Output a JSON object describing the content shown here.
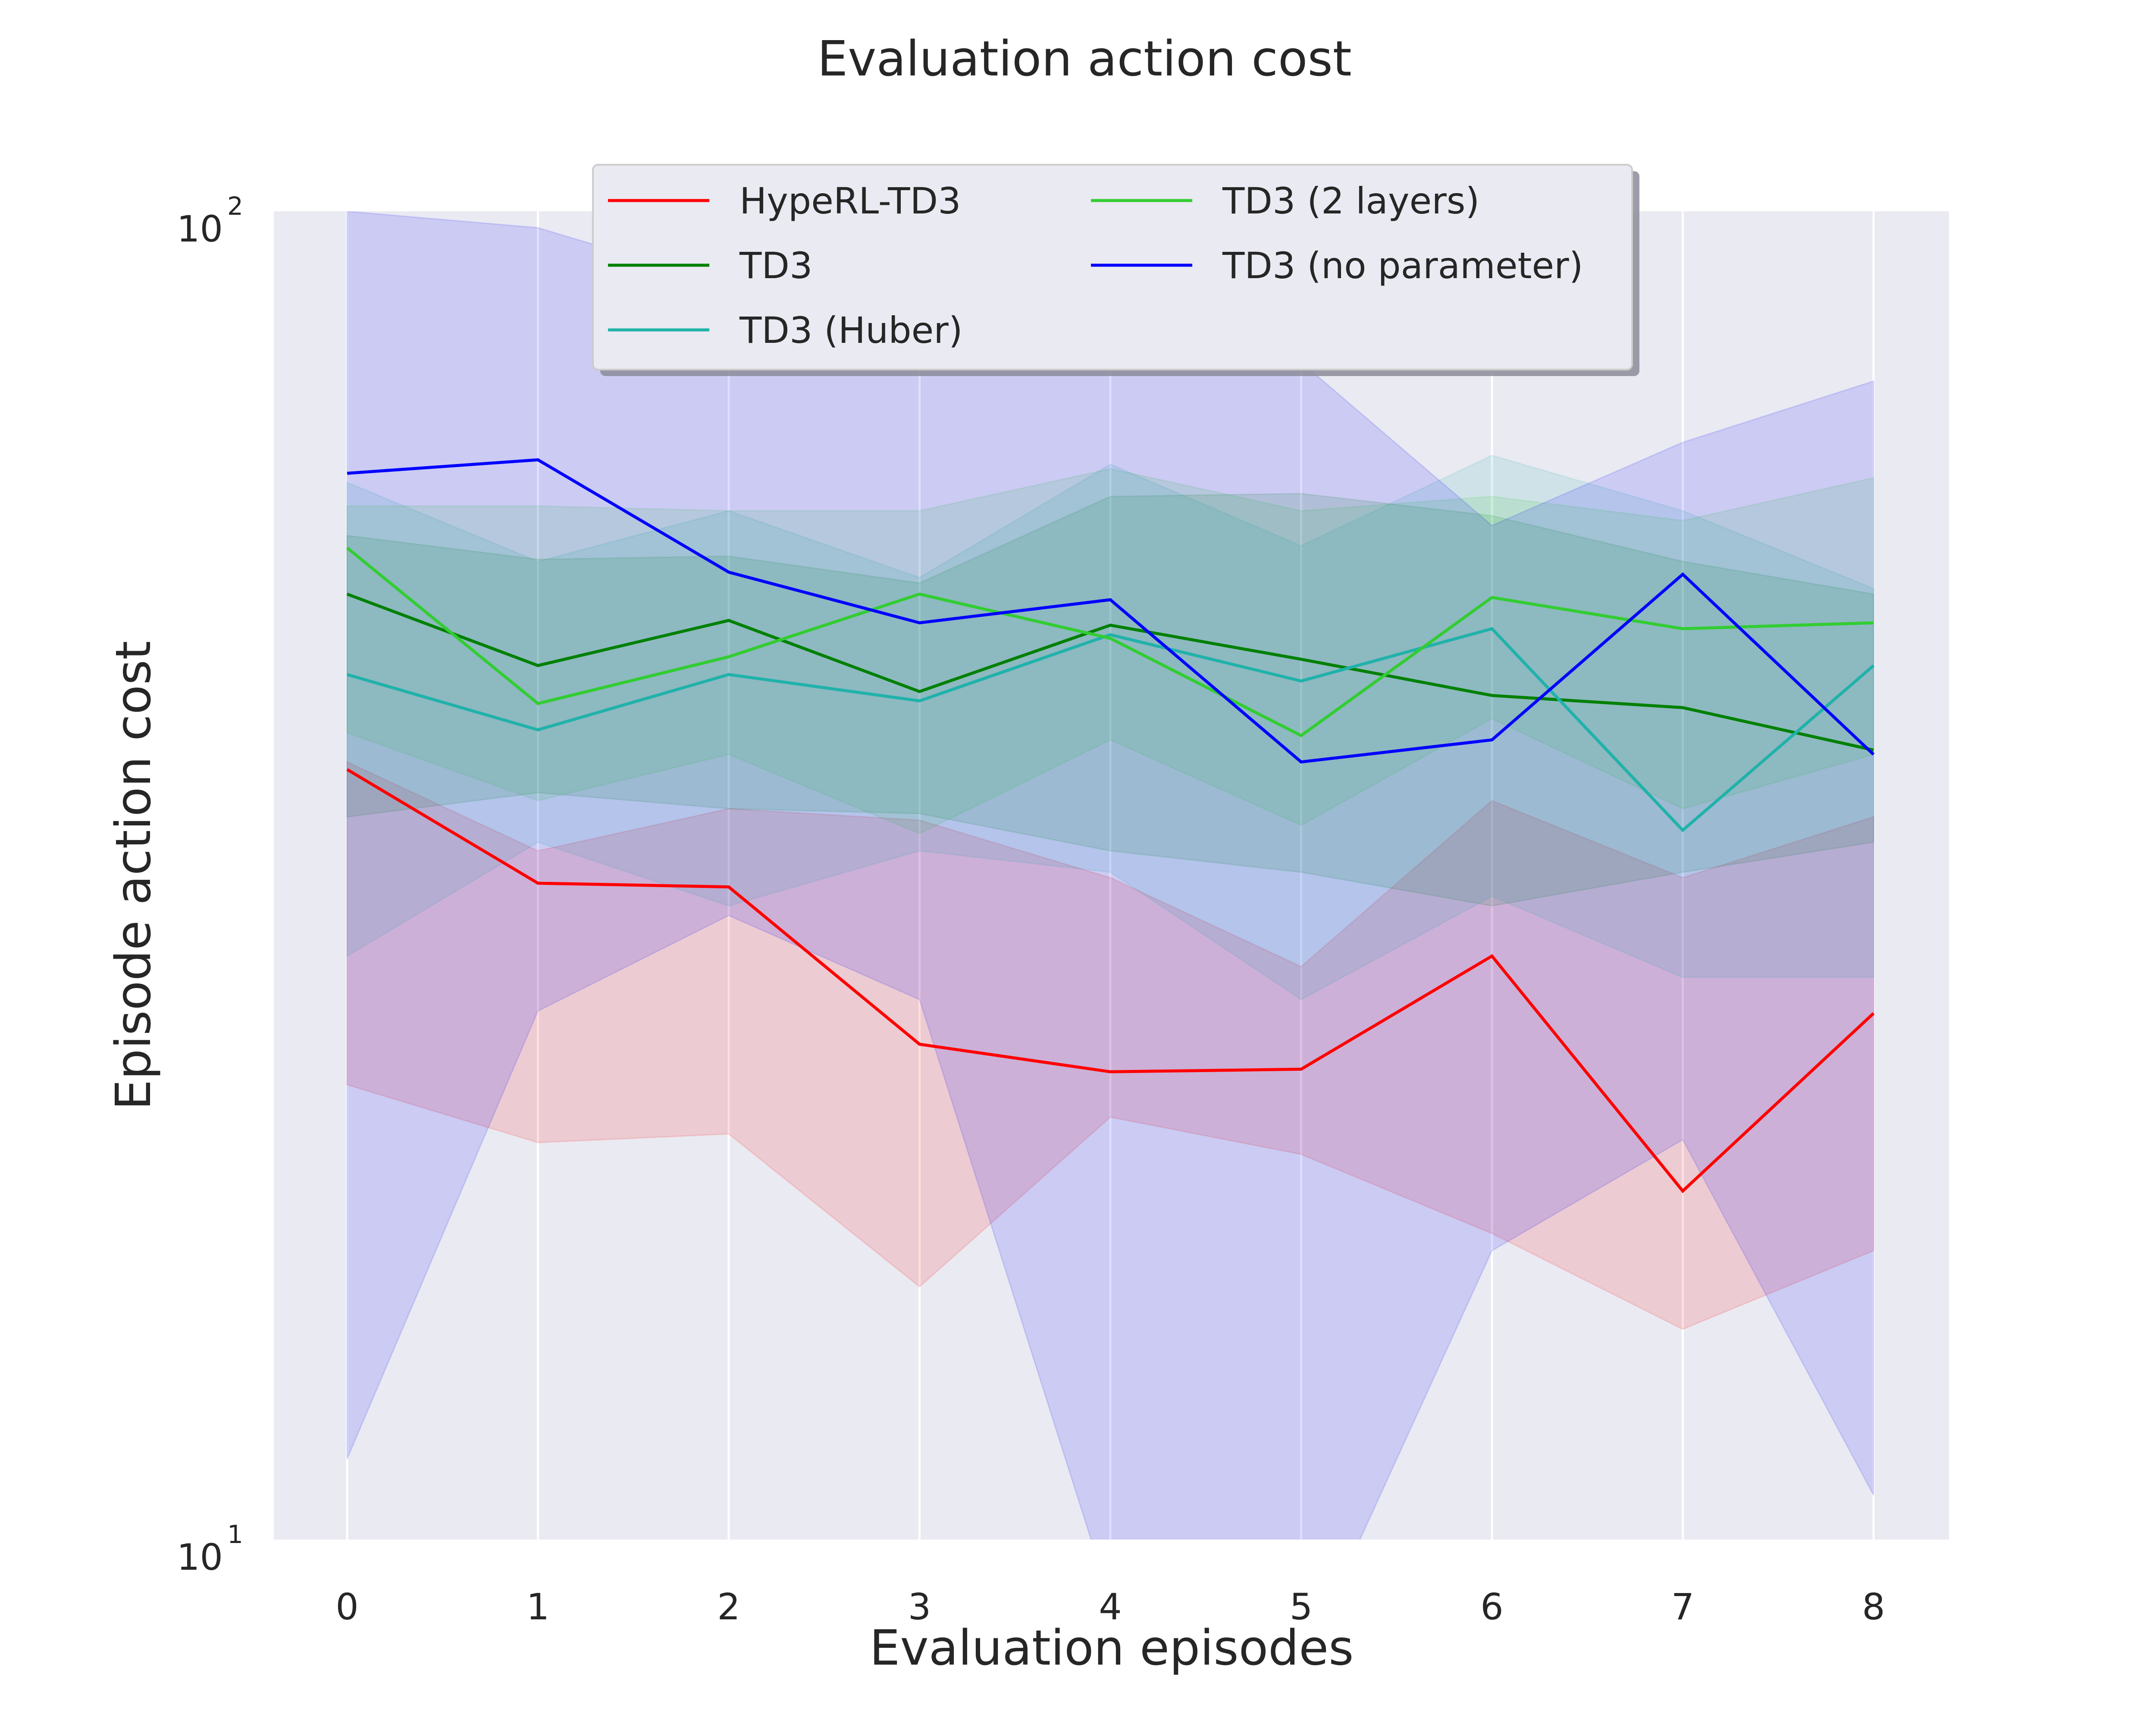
{
  "chart_data": {
    "type": "line",
    "title": "Evaluation action cost",
    "xlabel": "Evaluation episodes",
    "ylabel": "Episode action cost",
    "yscale": "log",
    "ylim": [
      10,
      100
    ],
    "x": [
      0,
      1,
      2,
      3,
      4,
      5,
      6,
      7,
      8
    ],
    "x_tick_labels": [
      "0",
      "1",
      "2",
      "3",
      "4",
      "5",
      "6",
      "7",
      "8"
    ],
    "y_ticks": [
      {
        "value": 10,
        "base": "10",
        "exp": "1"
      },
      {
        "value": 100,
        "base": "10",
        "exp": "2"
      }
    ],
    "grid": "x",
    "background": "#eaeaf2",
    "legend_location": "upper-center",
    "series": [
      {
        "name": "HypeRL-TD3",
        "color": "#ff0000",
        "values": [
          38.0,
          31.2,
          31.0,
          23.6,
          22.5,
          22.6,
          27.5,
          18.3,
          24.9
        ],
        "lower": [
          22.0,
          19.9,
          20.2,
          15.5,
          20.8,
          19.5,
          17.0,
          14.4,
          16.5
        ],
        "upper": [
          38.5,
          33.0,
          35.5,
          34.8,
          31.5,
          27.0,
          36.0,
          31.5,
          35.0
        ]
      },
      {
        "name": "TD3",
        "color": "#008000",
        "values": [
          51.5,
          45.5,
          49.2,
          43.5,
          48.8,
          46.0,
          43.2,
          42.3,
          39.3
        ],
        "lower": [
          35.0,
          36.5,
          35.5,
          35.2,
          33.0,
          31.8,
          30.0,
          31.8,
          33.5
        ],
        "upper": [
          57.0,
          54.7,
          55.0,
          52.5,
          61.0,
          61.3,
          59.0,
          54.5,
          51.5
        ]
      },
      {
        "name": "TD3 (Huber)",
        "color": "#20b2aa",
        "values": [
          44.8,
          40.7,
          44.8,
          42.8,
          48.0,
          44.3,
          48.5,
          34.2,
          45.5
        ],
        "lower": [
          27.5,
          33.5,
          30.0,
          33.0,
          31.8,
          25.5,
          30.5,
          26.5,
          26.5
        ],
        "upper": [
          62.5,
          54.5,
          59.5,
          53.0,
          64.5,
          56.0,
          65.5,
          59.5,
          52.0
        ]
      },
      {
        "name": "TD3 (2 layers)",
        "color": "#32cd32",
        "values": [
          55.8,
          42.6,
          46.2,
          51.5,
          47.7,
          40.3,
          51.2,
          48.5,
          49.0
        ],
        "lower": [
          40.5,
          36.0,
          39.0,
          34.0,
          40.0,
          34.5,
          41.5,
          35.5,
          39.0
        ],
        "upper": [
          60.0,
          60.0,
          59.5,
          59.5,
          64.0,
          59.5,
          61.0,
          58.5,
          63.0
        ]
      },
      {
        "name": "TD3 (no parameter)",
        "color": "#0000ff",
        "values": [
          63.5,
          65.0,
          53.5,
          49.0,
          51.0,
          38.5,
          40.0,
          53.3,
          39.0
        ],
        "lower": [
          11.5,
          25.0,
          29.5,
          25.5,
          9.0,
          8.0,
          16.5,
          20.0,
          10.8
        ],
        "upper": [
          100.0,
          97.2,
          88.0,
          80.0,
          88.0,
          77.0,
          58.0,
          67.0,
          74.5
        ]
      }
    ]
  }
}
